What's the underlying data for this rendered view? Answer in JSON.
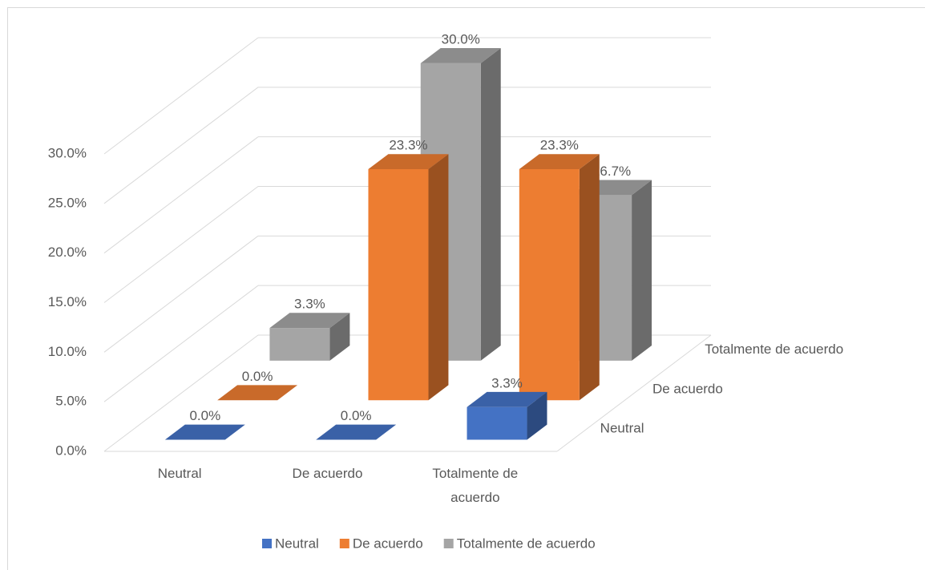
{
  "chart_data": {
    "type": "bar3d",
    "categories": [
      "Neutral",
      "De acuerdo",
      "Totalmente de acuerdo"
    ],
    "series": [
      {
        "name": "Neutral",
        "color": "#4472c4",
        "values": [
          0,
          0,
          3.3
        ],
        "value_labels": [
          "0.0%",
          "0.0%",
          "3.3%"
        ]
      },
      {
        "name": "De acuerdo",
        "color": "#ed7d31",
        "values": [
          0,
          23.3,
          23.3
        ],
        "value_labels": [
          "0.0%",
          "23.3%",
          "23.3%"
        ]
      },
      {
        "name": "Totalmente de acuerdo",
        "color": "#a5a5a5",
        "values": [
          3.3,
          30,
          16.7
        ],
        "value_labels": [
          "3.3%",
          "30.0%",
          "16.7%"
        ]
      }
    ],
    "ylim": [
      0,
      30
    ],
    "yticks": [
      {
        "value": 0,
        "label": "0.0%"
      },
      {
        "value": 5,
        "label": "5.0%"
      },
      {
        "value": 10,
        "label": "10.0%"
      },
      {
        "value": 15,
        "label": "15.0%"
      },
      {
        "value": 20,
        "label": "20.0%"
      },
      {
        "value": 25,
        "label": "25.0%"
      },
      {
        "value": 30,
        "label": "30.0%"
      }
    ],
    "grid": true,
    "legend": "bottom"
  }
}
